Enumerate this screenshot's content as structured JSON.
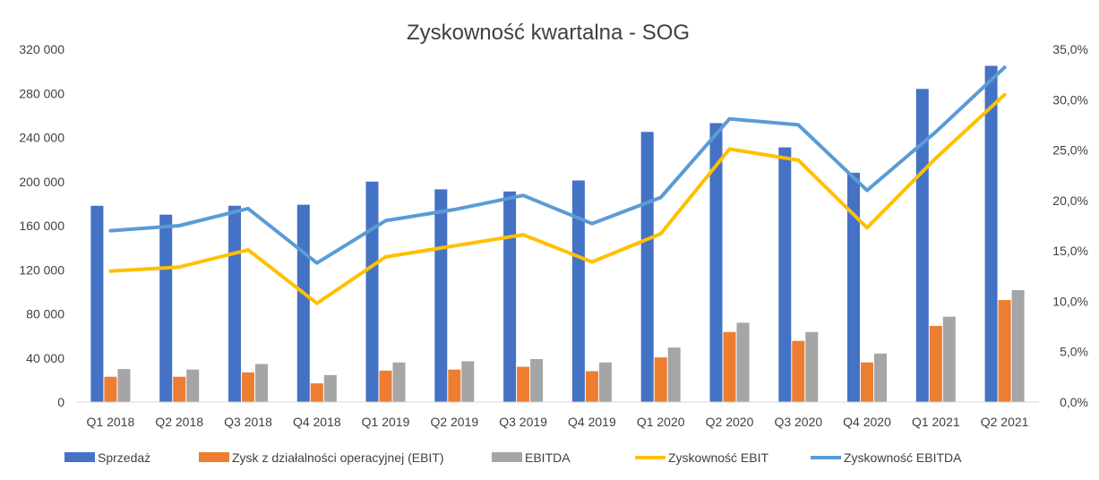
{
  "chart_data": {
    "type": "bar",
    "title": "Zyskowność kwartalna - SOG",
    "categories": [
      "Q1 2018",
      "Q2 2018",
      "Q3 2018",
      "Q4 2018",
      "Q1 2019",
      "Q2 2019",
      "Q3 2019",
      "Q4 2019",
      "Q1 2020",
      "Q2 2020",
      "Q3 2020",
      "Q4 2020",
      "Q1 2021",
      "Q2 2021"
    ],
    "y_left": {
      "min": 0,
      "max": 320000,
      "ticks": [
        0,
        40000,
        80000,
        120000,
        160000,
        200000,
        240000,
        280000,
        320000
      ],
      "tick_labels": [
        "0",
        "40 000",
        "80 000",
        "120 000",
        "160 000",
        "200 000",
        "240 000",
        "280 000",
        "320 000"
      ]
    },
    "y_right": {
      "min": 0,
      "max": 35,
      "ticks": [
        0,
        5,
        10,
        15,
        20,
        25,
        30,
        35
      ],
      "tick_labels": [
        "0,0%",
        "5,0%",
        "10,0%",
        "15,0%",
        "20,0%",
        "25,0%",
        "30,0%",
        "35,0%"
      ]
    },
    "bar_series": [
      {
        "name": "Sprzedaż",
        "color": "#4472C4",
        "values": [
          178000,
          170000,
          178000,
          179000,
          200000,
          193000,
          191000,
          201000,
          245000,
          253000,
          231000,
          208000,
          284000,
          305000
        ]
      },
      {
        "name": "Zysk z działalności operacyjnej (EBIT)",
        "color": "#ED7D31",
        "values": [
          23000,
          23000,
          27000,
          17000,
          28500,
          29500,
          32000,
          28000,
          40500,
          63500,
          55500,
          36000,
          69000,
          92500
        ]
      },
      {
        "name": "EBITDA",
        "color": "#A5A5A5",
        "values": [
          30000,
          29500,
          34500,
          24500,
          36000,
          37000,
          39000,
          36000,
          49500,
          72000,
          63500,
          44000,
          77500,
          101500
        ]
      }
    ],
    "line_series": [
      {
        "name": "Zyskowność EBIT",
        "color": "#FFC000",
        "values": [
          13.0,
          13.4,
          15.1,
          9.8,
          14.4,
          15.5,
          16.6,
          13.9,
          16.7,
          25.1,
          24.0,
          17.3,
          24.2,
          30.5
        ]
      },
      {
        "name": "Zyskowność EBITDA",
        "color": "#5B9BD5",
        "values": [
          17.0,
          17.5,
          19.2,
          13.8,
          18.0,
          19.1,
          20.5,
          17.7,
          20.3,
          28.1,
          27.5,
          21.0,
          26.8,
          33.2
        ]
      }
    ],
    "legend": {
      "placement": "bottom"
    },
    "grid": false
  }
}
